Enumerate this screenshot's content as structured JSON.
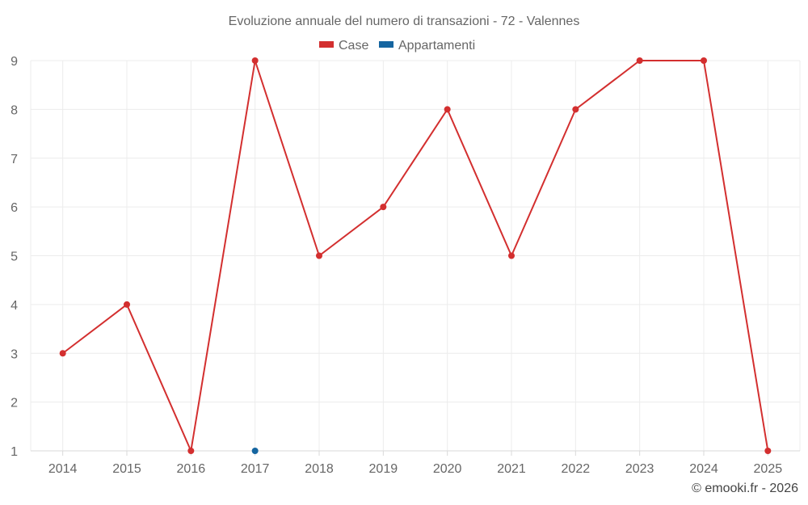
{
  "chart_data": {
    "type": "line",
    "title": "Evoluzione annuale del numero di transazioni - 72 - Valennes",
    "categories": [
      "2014",
      "2015",
      "2016",
      "2017",
      "2018",
      "2019",
      "2020",
      "2021",
      "2022",
      "2023",
      "2024",
      "2025"
    ],
    "series": [
      {
        "name": "Case",
        "color": "#d32f2f",
        "values": [
          3,
          4,
          1,
          9,
          5,
          6,
          8,
          5,
          8,
          9,
          9,
          1
        ]
      },
      {
        "name": "Appartamenti",
        "color": "#1565a0",
        "values": [
          null,
          null,
          null,
          1,
          null,
          null,
          null,
          null,
          null,
          null,
          null,
          null
        ]
      }
    ],
    "yticks": [
      1,
      2,
      3,
      4,
      5,
      6,
      7,
      8,
      9
    ],
    "ylim": [
      1,
      9
    ],
    "grid": true,
    "legend_position": "top-center"
  },
  "credit": "© emooki.fr - 2026"
}
